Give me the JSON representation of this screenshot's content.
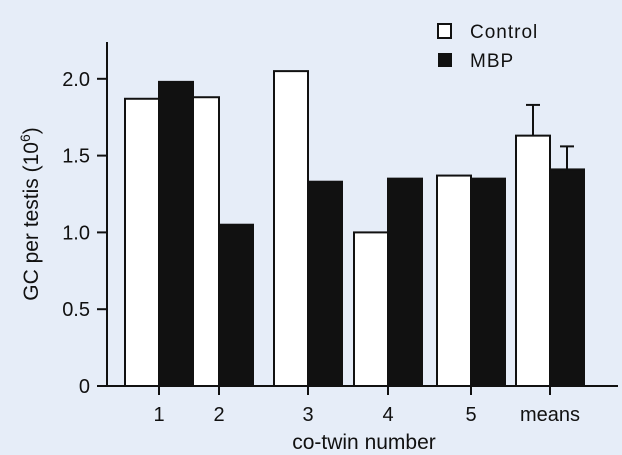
{
  "chart_data": {
    "type": "bar",
    "categories": [
      "1",
      "2",
      "3",
      "4",
      "5",
      "means"
    ],
    "series": [
      {
        "name": "Control",
        "values": [
          1.87,
          1.88,
          2.05,
          1.0,
          1.37,
          1.63
        ],
        "errors": [
          null,
          null,
          null,
          null,
          null,
          0.2
        ],
        "color": "#ffffff"
      },
      {
        "name": "MBP",
        "values": [
          1.98,
          1.05,
          1.33,
          1.35,
          1.35,
          1.41
        ],
        "errors": [
          null,
          null,
          null,
          null,
          null,
          0.15
        ],
        "color": "#111111"
      }
    ],
    "xlabel": "co-twin number",
    "ylabel": {
      "base": "GC per testis (10",
      "exp": "6",
      "close": ")"
    },
    "ylim": [
      0,
      2.25
    ],
    "yticks": [
      0,
      0.5,
      1.0,
      1.5,
      2.0
    ],
    "ytick_labels": [
      "0",
      "0.5",
      "1.0",
      "1.5",
      "2.0"
    ],
    "legend_position": "top-right",
    "grid": false
  }
}
